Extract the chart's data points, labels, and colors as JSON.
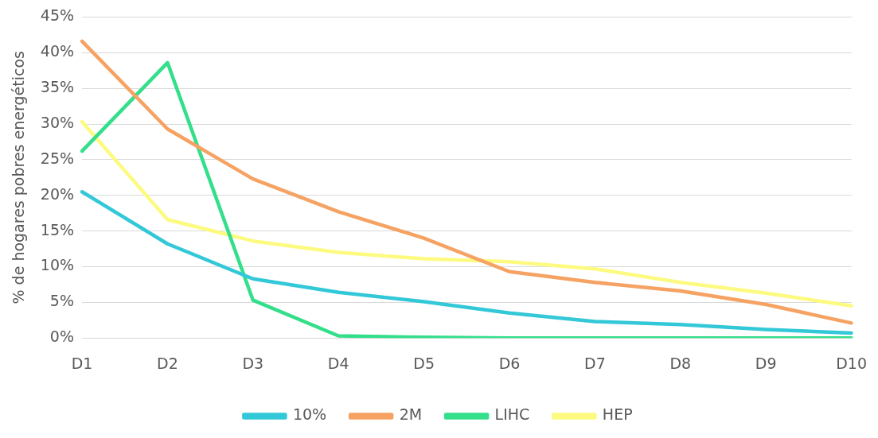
{
  "chart_data": {
    "type": "line",
    "ylabel": "% de hogares pobres energéticos",
    "categories": [
      "D1",
      "D2",
      "D3",
      "D4",
      "D5",
      "D6",
      "D7",
      "D8",
      "D9",
      "D10"
    ],
    "series": [
      {
        "name": "10%",
        "color": "#33c8d8",
        "values": [
          20.5,
          13.2,
          8.3,
          6.4,
          5.1,
          3.5,
          2.3,
          1.9,
          1.2,
          0.7
        ]
      },
      {
        "name": "2M",
        "color": "#f5a263",
        "values": [
          41.6,
          29.3,
          22.3,
          17.7,
          14.0,
          9.3,
          7.8,
          6.6,
          4.7,
          2.1
        ]
      },
      {
        "name": "LIHC",
        "color": "#33df8a",
        "values": [
          26.2,
          38.6,
          5.3,
          0.3,
          0.1,
          0,
          0,
          0,
          0,
          0
        ]
      },
      {
        "name": "HEP",
        "color": "#fdfa80",
        "values": [
          30.3,
          16.6,
          13.6,
          12.0,
          11.1,
          10.7,
          9.7,
          7.8,
          6.3,
          4.5
        ]
      }
    ],
    "ylim": [
      0,
      45
    ],
    "yticks": [
      {
        "value": 0,
        "label": "0%"
      },
      {
        "value": 5,
        "label": "5%"
      },
      {
        "value": 10,
        "label": "10%"
      },
      {
        "value": 15,
        "label": "15%"
      },
      {
        "value": 20,
        "label": "20%"
      },
      {
        "value": 25,
        "label": "25%"
      },
      {
        "value": 30,
        "label": "30%"
      },
      {
        "value": 35,
        "label": "35%"
      },
      {
        "value": 40,
        "label": "40%"
      },
      {
        "value": 45,
        "label": "45%"
      }
    ],
    "grid": "y",
    "legend": "bottom",
    "marker": "none",
    "line_style": "solid"
  }
}
